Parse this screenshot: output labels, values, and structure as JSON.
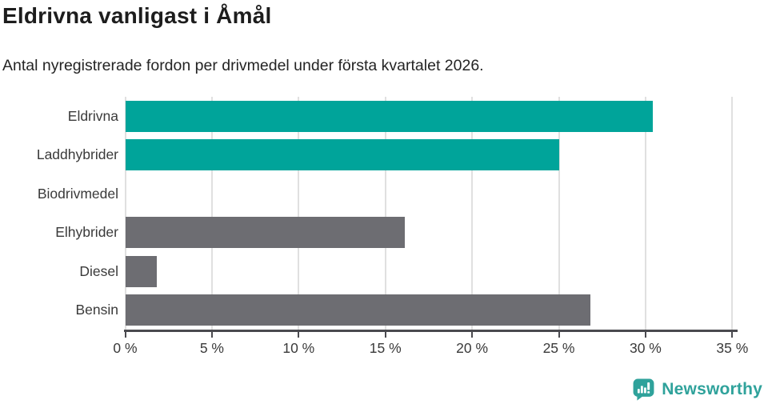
{
  "header": {
    "title": "Eldrivna vanligast i Åmål",
    "subtitle": "Antal nyregistrerade fordon per drivmedel under första kvartalet 2026."
  },
  "chart_data": {
    "type": "bar",
    "orientation": "horizontal",
    "title": "Eldrivna vanligast i Åmål",
    "subtitle": "Antal nyregistrerade fordon per drivmedel under första kvartalet 2026.",
    "categories": [
      "Eldrivna",
      "Laddhybrider",
      "Biodrivmedel",
      "Elhybrider",
      "Diesel",
      "Bensin"
    ],
    "values": [
      30.4,
      25.0,
      0.0,
      16.1,
      1.8,
      26.8
    ],
    "unit": "%",
    "bar_colors": [
      "#00a49a",
      "#00a49a",
      "#00a49a",
      "#6d6d72",
      "#6d6d72",
      "#6d6d72"
    ],
    "xlim": [
      0,
      35.1
    ],
    "x_ticks": [
      0,
      5,
      10,
      15,
      20,
      25,
      30,
      35
    ],
    "x_tick_labels": [
      "0 %",
      "5 %",
      "10 %",
      "15 %",
      "20 %",
      "25 %",
      "30 %",
      "35 %"
    ],
    "grid": true,
    "legend": false
  },
  "colors": {
    "accent_teal": "#00a49a",
    "neutral_gray": "#6d6d72",
    "gridline": "#e0e0e0",
    "axis": "#4a4a4f",
    "title_text": "#1d1d1d",
    "label_text": "#3a3a3a",
    "logo_teal": "#2fa29b"
  },
  "footer": {
    "brand": "Newsworthy",
    "logo_icon": "newsworthy-speech-bubble-chart-icon"
  }
}
